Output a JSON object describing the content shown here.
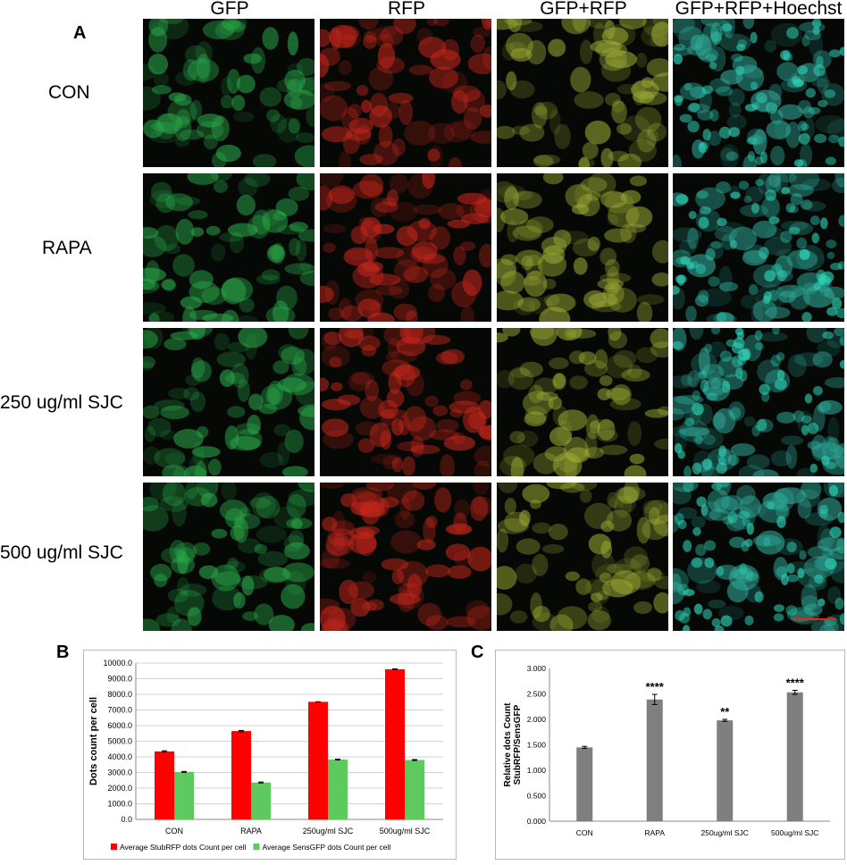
{
  "panel_a": {
    "letter": "A",
    "column_headers": [
      "GFP",
      "RFP",
      "GFP+RFP",
      "GFP+RFP+Hoechst"
    ],
    "row_labels": [
      "CON",
      "RAPA",
      "250 ug/ml SJC",
      "500 ug/ml SJC"
    ],
    "channel_colors": [
      "#2aa84a",
      "#c6261c",
      "#9ba934",
      "#2fa898"
    ]
  },
  "chart_data": [
    {
      "panel": "B",
      "type": "bar",
      "categories": [
        "CON",
        "RAPA",
        "250ug/ml SJC",
        "500ug/ml SJC"
      ],
      "series": [
        {
          "name": "Average  StubRFP dots Count per cell",
          "color": "#ff0000",
          "values": [
            4350,
            5650,
            7520,
            9600
          ],
          "errors": [
            40,
            40,
            0,
            30
          ]
        },
        {
          "name": "Average SensGFP dots Count per cell",
          "color": "#5ec95e",
          "values": [
            3040,
            2360,
            3830,
            3800
          ],
          "errors": [
            30,
            30,
            30,
            30
          ]
        }
      ],
      "ylabel": "Dots  count per cell",
      "ylim": [
        0,
        10000
      ],
      "yticks": [
        "0.0",
        "1000.0",
        "2000.0",
        "3000.0",
        "4000.0",
        "5000.0",
        "6000.0",
        "7000.0",
        "8000.0",
        "9000.0",
        "10000.0"
      ],
      "grid": true,
      "legend": "bottom"
    },
    {
      "panel": "C",
      "type": "bar",
      "categories": [
        "CON",
        "RAPA",
        "250ug/ml SJC",
        "500ug/ml SJC"
      ],
      "series": [
        {
          "color": "#7f7f7f",
          "values": [
            1.45,
            2.39,
            1.98,
            2.53
          ],
          "errors": [
            0.02,
            0.1,
            0.02,
            0.04
          ]
        }
      ],
      "annotations": [
        "",
        "****",
        "**",
        "****"
      ],
      "ylabel": "Relative dots Count\nStubRFP/SensGFP",
      "ylim": [
        0,
        3
      ],
      "yticks": [
        "0.000",
        "0.500",
        "1.000",
        "1.500",
        "2.000",
        "2.500",
        "3.000"
      ],
      "grid": false
    }
  ]
}
